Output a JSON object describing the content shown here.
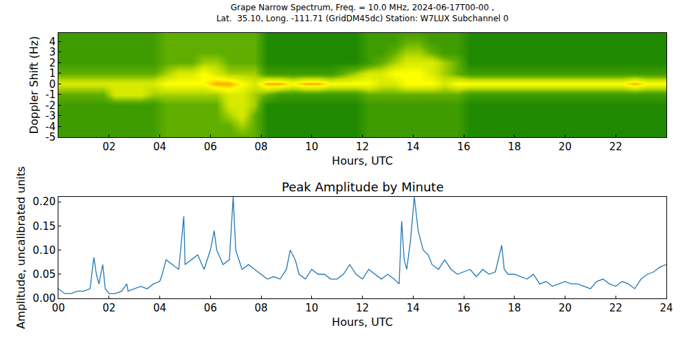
{
  "chart_data": [
    {
      "type": "heatmap",
      "title": "Grape Narrow Spectrum, Freq. = 10.0 MHz, 2024-06-17T00-00 ,",
      "subtitle": "Lat.  35.10, Long. -111.71 (GridDM45dc) Station: W7LUX Subchannel 0",
      "xlabel": "Hours, UTC",
      "ylabel": "Doppler Shift (Hz)",
      "x": [
        0.25,
        0.75,
        1.25,
        1.75,
        2.25,
        2.75,
        3.25,
        3.75,
        4.25,
        4.75,
        5.25,
        5.75,
        6.25,
        6.75,
        7.25,
        7.75,
        8.25,
        8.75,
        9.25,
        9.75,
        10.25,
        10.75,
        11.25,
        11.75,
        12.25,
        12.75,
        13.25,
        13.75,
        14.25,
        14.75,
        15.25,
        15.75,
        16.25,
        16.75,
        17.25,
        17.75,
        18.25,
        18.75,
        19.25,
        19.75,
        20.25,
        20.75,
        21.25,
        21.75,
        22.25,
        22.75,
        23.25,
        23.75
      ],
      "y": [
        -5,
        -4,
        -3,
        -2,
        -1,
        0,
        1,
        2,
        3,
        4,
        5
      ],
      "z": [
        [
          4,
          4,
          4,
          4,
          4,
          4,
          4,
          4,
          5,
          5,
          5,
          5,
          5,
          5,
          5,
          5,
          3,
          3,
          3,
          3,
          3,
          3,
          3,
          3,
          4,
          4,
          4,
          4,
          4,
          4,
          4,
          4,
          3,
          3,
          3,
          3,
          3,
          3,
          3,
          3,
          3,
          3,
          3,
          3,
          3,
          3,
          3,
          3
        ],
        [
          4,
          4,
          4,
          4,
          4,
          4,
          4,
          4,
          5,
          5,
          5,
          5,
          5,
          5,
          6,
          5,
          3,
          3,
          3,
          3,
          3,
          3,
          3,
          3,
          4,
          4,
          4,
          4,
          4,
          4,
          4,
          4,
          3,
          3,
          3,
          3,
          3,
          3,
          3,
          3,
          3,
          3,
          3,
          3,
          3,
          3,
          3,
          3
        ],
        [
          4,
          4,
          4,
          4,
          4,
          4,
          4,
          4,
          5,
          5,
          5,
          5,
          5,
          6,
          7,
          5,
          3,
          3,
          3,
          3,
          3,
          3,
          3,
          3,
          4,
          4,
          4,
          4,
          4,
          4,
          4,
          4,
          3,
          3,
          3,
          3,
          3,
          3,
          3,
          3,
          3,
          3,
          3,
          3,
          3,
          3,
          3,
          3
        ],
        [
          4,
          4,
          4,
          4,
          4,
          4,
          4,
          4,
          5,
          5,
          5,
          5,
          5,
          7,
          7,
          6,
          3,
          3,
          3,
          3,
          3,
          3,
          3,
          3,
          4,
          4,
          4,
          4,
          4,
          4,
          4,
          4,
          3,
          3,
          3,
          3,
          3,
          3,
          3,
          3,
          3,
          3,
          3,
          3,
          3,
          3,
          3,
          3
        ],
        [
          5,
          5,
          5,
          5,
          7,
          7,
          7,
          6,
          6,
          6,
          6,
          6,
          6,
          7,
          7,
          6,
          5,
          4,
          4,
          4,
          4,
          4,
          4,
          4,
          5,
          5,
          5,
          5,
          5,
          5,
          5,
          5,
          4,
          4,
          4,
          4,
          4,
          4,
          4,
          4,
          4,
          4,
          4,
          4,
          4,
          4,
          4,
          4
        ],
        [
          7,
          7,
          7,
          7,
          7,
          7,
          7,
          7,
          8,
          8,
          8,
          8,
          9,
          9,
          8,
          7,
          9,
          9,
          8,
          9,
          9,
          8,
          8,
          8,
          8,
          7,
          7,
          8,
          8,
          8,
          7,
          8,
          8,
          8,
          8,
          8,
          8,
          8,
          8,
          8,
          8,
          8,
          8,
          8,
          8,
          9,
          8,
          8
        ],
        [
          5,
          5,
          5,
          5,
          5,
          5,
          5,
          5,
          6,
          7,
          7,
          8,
          7,
          6,
          6,
          6,
          4,
          4,
          4,
          4,
          4,
          4,
          5,
          6,
          7,
          7,
          8,
          8,
          8,
          7,
          6,
          5,
          4,
          4,
          4,
          4,
          4,
          4,
          4,
          4,
          4,
          4,
          4,
          4,
          4,
          4,
          4,
          4
        ],
        [
          4,
          4,
          4,
          4,
          4,
          4,
          4,
          4,
          5,
          5,
          5,
          6,
          6,
          5,
          5,
          5,
          3,
          3,
          3,
          3,
          3,
          3,
          3,
          3,
          4,
          5,
          6,
          7,
          7,
          7,
          6,
          5,
          3,
          3,
          3,
          3,
          3,
          3,
          3,
          3,
          3,
          3,
          3,
          3,
          3,
          3,
          3,
          3
        ],
        [
          4,
          4,
          4,
          4,
          4,
          4,
          4,
          4,
          5,
          5,
          5,
          5,
          5,
          5,
          5,
          5,
          3,
          3,
          3,
          3,
          3,
          3,
          3,
          3,
          4,
          4,
          5,
          6,
          6,
          5,
          4,
          4,
          3,
          3,
          3,
          3,
          3,
          3,
          3,
          3,
          3,
          3,
          3,
          3,
          3,
          3,
          3,
          3
        ],
        [
          4,
          4,
          4,
          4,
          4,
          4,
          4,
          4,
          5,
          5,
          5,
          5,
          5,
          5,
          5,
          5,
          3,
          3,
          3,
          3,
          3,
          3,
          3,
          3,
          4,
          4,
          4,
          5,
          5,
          4,
          4,
          4,
          3,
          3,
          3,
          3,
          3,
          3,
          3,
          3,
          3,
          3,
          3,
          3,
          3,
          3,
          3,
          3
        ],
        [
          4,
          4,
          4,
          4,
          4,
          4,
          4,
          4,
          5,
          5,
          5,
          5,
          5,
          5,
          5,
          5,
          3,
          3,
          3,
          3,
          3,
          3,
          3,
          3,
          4,
          4,
          4,
          4,
          4,
          4,
          4,
          4,
          3,
          3,
          3,
          3,
          3,
          3,
          3,
          3,
          3,
          3,
          3,
          3,
          3,
          3,
          3,
          3
        ]
      ],
      "zlim": [
        0,
        10
      ],
      "xlim": [
        0,
        24
      ],
      "xticks": [
        {
          "value": 2,
          "label": "02"
        },
        {
          "value": 4,
          "label": "04"
        },
        {
          "value": 6,
          "label": "06"
        },
        {
          "value": 8,
          "label": "08"
        },
        10,
        12,
        14,
        16,
        18,
        20,
        22
      ],
      "ylim": [
        -5,
        4.8
      ],
      "yticks": [
        -5,
        -4,
        -3,
        -2,
        -1,
        0,
        1,
        2,
        3,
        4
      ]
    },
    {
      "type": "line",
      "title": "Peak Amplitude by Minute",
      "xlabel": "Hours, UTC",
      "ylabel": "Amplitude, uncalibrated units",
      "color": "#1f77b4",
      "x": [
        0,
        0.25,
        0.5,
        0.75,
        1,
        1.25,
        1.4,
        1.5,
        1.6,
        1.75,
        1.85,
        2,
        2.25,
        2.5,
        2.7,
        2.75,
        3,
        3.25,
        3.5,
        3.75,
        4,
        4.1,
        4.25,
        4.5,
        4.75,
        4.95,
        5,
        5.25,
        5.5,
        5.75,
        6,
        6.15,
        6.25,
        6.5,
        6.75,
        6.9,
        7,
        7.25,
        7.5,
        7.75,
        8,
        8.25,
        8.5,
        8.75,
        9,
        9.15,
        9.35,
        9.5,
        9.75,
        10,
        10.25,
        10.5,
        10.75,
        11,
        11.25,
        11.5,
        11.75,
        12,
        12.25,
        12.5,
        12.75,
        13,
        13.25,
        13.45,
        13.55,
        13.65,
        13.75,
        13.9,
        14.05,
        14.2,
        14.4,
        14.6,
        14.75,
        15,
        15.25,
        15.5,
        15.75,
        16,
        16.25,
        16.5,
        16.75,
        17,
        17.25,
        17.5,
        17.6,
        17.75,
        18,
        18.25,
        18.5,
        18.75,
        19,
        19.25,
        19.5,
        19.75,
        20,
        20.25,
        20.5,
        20.75,
        21,
        21.25,
        21.5,
        21.75,
        22,
        22.25,
        22.5,
        22.75,
        23,
        23.25,
        23.5,
        23.75,
        24
      ],
      "values": [
        0.02,
        0.01,
        0.01,
        0.015,
        0.015,
        0.02,
        0.085,
        0.05,
        0.03,
        0.07,
        0.02,
        0.01,
        0.01,
        0.015,
        0.03,
        0.015,
        0.02,
        0.025,
        0.02,
        0.03,
        0.035,
        0.05,
        0.08,
        0.07,
        0.06,
        0.17,
        0.07,
        0.08,
        0.09,
        0.06,
        0.1,
        0.14,
        0.1,
        0.07,
        0.08,
        0.21,
        0.1,
        0.06,
        0.07,
        0.06,
        0.05,
        0.04,
        0.045,
        0.04,
        0.06,
        0.1,
        0.08,
        0.05,
        0.04,
        0.06,
        0.05,
        0.05,
        0.04,
        0.04,
        0.05,
        0.07,
        0.05,
        0.04,
        0.06,
        0.05,
        0.04,
        0.05,
        0.04,
        0.03,
        0.16,
        0.08,
        0.06,
        0.12,
        0.21,
        0.14,
        0.1,
        0.09,
        0.07,
        0.06,
        0.08,
        0.06,
        0.05,
        0.055,
        0.06,
        0.045,
        0.06,
        0.05,
        0.055,
        0.11,
        0.06,
        0.05,
        0.05,
        0.045,
        0.04,
        0.05,
        0.03,
        0.035,
        0.025,
        0.03,
        0.035,
        0.03,
        0.03,
        0.025,
        0.02,
        0.035,
        0.04,
        0.03,
        0.025,
        0.035,
        0.03,
        0.02,
        0.04,
        0.05,
        0.055,
        0.065,
        0.07
      ],
      "xlim": [
        0,
        24
      ],
      "xticks": [
        {
          "value": 0,
          "label": "00"
        },
        {
          "value": 2,
          "label": "02"
        },
        {
          "value": 4,
          "label": "04"
        },
        {
          "value": 6,
          "label": "06"
        },
        {
          "value": 8,
          "label": "08"
        },
        10,
        12,
        14,
        16,
        18,
        20,
        22,
        24
      ],
      "ylim": [
        0,
        0.21
      ],
      "yticks": [
        {
          "value": 0,
          "label": "0.00"
        },
        {
          "value": 0.05,
          "label": "0.05"
        },
        {
          "value": 0.1,
          "label": "0.10"
        },
        {
          "value": 0.15,
          "label": "0.15"
        },
        {
          "value": 0.2,
          "label": "0.20"
        }
      ]
    }
  ]
}
